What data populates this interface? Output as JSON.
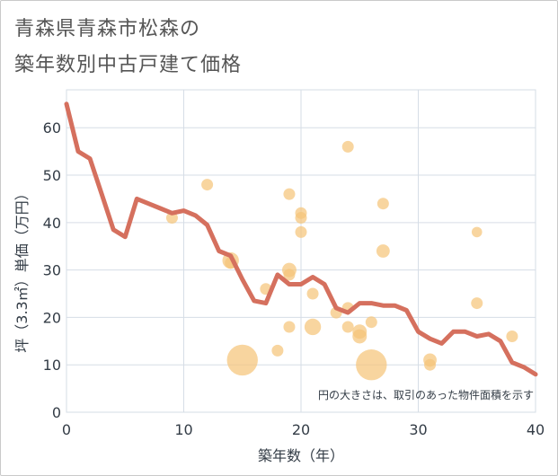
{
  "chart_data": {
    "type": "scatter",
    "title_line1": "青森県青森市松森の",
    "title_line2": "築年数別中古戸建て価格",
    "xlabel": "築年数（年）",
    "ylabel": "坪（3.3㎡）単価（万円）",
    "xlim": [
      0,
      40
    ],
    "ylim": [
      0,
      68
    ],
    "xticks": [
      0,
      10,
      20,
      30,
      40
    ],
    "yticks": [
      0,
      10,
      20,
      30,
      40,
      50,
      60
    ],
    "note": "円の大きさは、取引のあった物件面積を示す",
    "colors": {
      "bubble": "#f5c57a",
      "line": "#d5705e",
      "grid": "#d6dde6"
    },
    "points": [
      {
        "x": 9,
        "y": 41,
        "s": 1
      },
      {
        "x": 12,
        "y": 48,
        "s": 1
      },
      {
        "x": 14,
        "y": 32,
        "s": 2
      },
      {
        "x": 14,
        "y": 31.5,
        "s": 1
      },
      {
        "x": 15,
        "y": 11,
        "s": 7
      },
      {
        "x": 17,
        "y": 26,
        "s": 1
      },
      {
        "x": 18,
        "y": 13,
        "s": 1
      },
      {
        "x": 19,
        "y": 46,
        "s": 1
      },
      {
        "x": 19,
        "y": 30,
        "s": 1.5
      },
      {
        "x": 19,
        "y": 29,
        "s": 1
      },
      {
        "x": 19,
        "y": 18,
        "s": 1
      },
      {
        "x": 20,
        "y": 42,
        "s": 1
      },
      {
        "x": 20,
        "y": 41,
        "s": 1
      },
      {
        "x": 20,
        "y": 38,
        "s": 1
      },
      {
        "x": 21,
        "y": 25,
        "s": 1
      },
      {
        "x": 21,
        "y": 18,
        "s": 2
      },
      {
        "x": 23,
        "y": 21,
        "s": 1
      },
      {
        "x": 24,
        "y": 56,
        "s": 1
      },
      {
        "x": 24,
        "y": 22,
        "s": 1
      },
      {
        "x": 24,
        "y": 18,
        "s": 1
      },
      {
        "x": 25,
        "y": 17,
        "s": 1.5
      },
      {
        "x": 25,
        "y": 16,
        "s": 1.5
      },
      {
        "x": 26,
        "y": 19,
        "s": 1
      },
      {
        "x": 26,
        "y": 10,
        "s": 7
      },
      {
        "x": 27,
        "y": 44,
        "s": 1
      },
      {
        "x": 27,
        "y": 34,
        "s": 1.3
      },
      {
        "x": 31,
        "y": 11,
        "s": 1.3
      },
      {
        "x": 31,
        "y": 10,
        "s": 1
      },
      {
        "x": 35,
        "y": 38,
        "s": 0.8
      },
      {
        "x": 35,
        "y": 23,
        "s": 1
      },
      {
        "x": 38,
        "y": 16,
        "s": 1
      }
    ],
    "line": {
      "x": [
        0,
        1,
        2,
        3,
        4,
        5,
        6,
        7,
        8,
        9,
        10,
        11,
        12,
        13,
        14,
        15,
        16,
        17,
        18,
        19,
        20,
        21,
        22,
        23,
        24,
        25,
        26,
        27,
        28,
        29,
        30,
        31,
        32,
        33,
        34,
        35,
        36,
        37,
        38,
        39,
        40
      ],
      "y": [
        65,
        55,
        53.5,
        46,
        38.5,
        37,
        45,
        44,
        43,
        42,
        42.5,
        41.5,
        39.5,
        34,
        33,
        28,
        23.5,
        23,
        29,
        27,
        27,
        28.5,
        27,
        22,
        21,
        23,
        23,
        22.5,
        22.5,
        21.5,
        17,
        15.5,
        14.5,
        17,
        17,
        16,
        16.5,
        15,
        10.5,
        9.5,
        8
      ]
    }
  }
}
